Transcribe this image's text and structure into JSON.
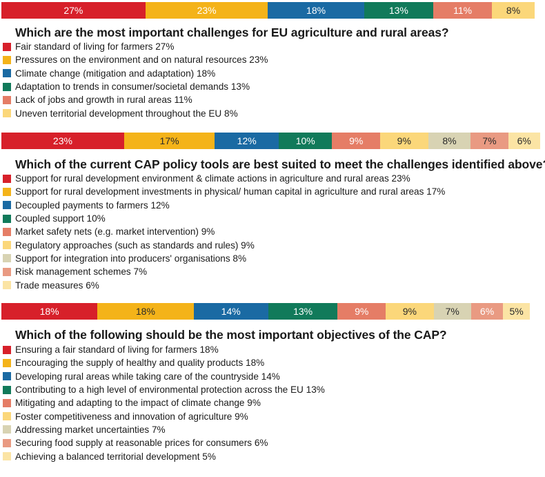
{
  "colors": {
    "red": "#d7202a",
    "orange": "#f4b319",
    "blue": "#1a6aa3",
    "green": "#117a5a",
    "salmon": "#e57d66",
    "yellow": "#fbd77a",
    "beige": "#d8d3b3",
    "pinkish": "#e99a82",
    "pale": "#fbe4a4"
  },
  "chart_data": [
    {
      "type": "bar",
      "stacked": true,
      "orientation": "horizontal",
      "title": "Which are the most important challenges for EU agriculture and rural areas?",
      "categories": [
        "Fair standard of living for farmers",
        "Pressures on the environment and on natural resources",
        "Climate change (mitigation and adaptation)",
        "Adaptation to trends in consumer/societal demands",
        "Lack of jobs and growth in rural areas",
        "Uneven territorial development throughout the EU"
      ],
      "values": [
        27,
        23,
        18,
        13,
        11,
        8
      ],
      "labels": [
        "27%",
        "23%",
        "18%",
        "13%",
        "11%",
        "8%"
      ],
      "legend": [
        "Fair standard of living for farmers 27%",
        "Pressures on the environment and on natural resources 23%",
        "Climate change (mitigation and adaptation) 18%",
        "Adaptation to trends in consumer/societal demands 13%",
        "Lack of jobs and growth in rural areas 11%",
        "Uneven territorial development throughout the EU 8%"
      ],
      "colors": [
        "#d7202a",
        "#f4b319",
        "#1a6aa3",
        "#117a5a",
        "#e57d66",
        "#fbd77a"
      ],
      "text_dark": [
        false,
        false,
        false,
        false,
        false,
        true
      ]
    },
    {
      "type": "bar",
      "stacked": true,
      "orientation": "horizontal",
      "title": "Which of the current CAP policy tools are best suited to meet the challenges identified above?",
      "categories": [
        "Support for rural development environment & climate actions in agriculture and rural areas",
        "Support for rural development investments in physical/ human capital in agriculture and rural areas",
        "Decoupled payments to farmers",
        "Coupled support",
        "Market safety nets (e.g. market intervention)",
        "Regulatory approaches (such as standards and rules)",
        "Support for integration into producers' organisations",
        "Risk management schemes",
        "Trade measures"
      ],
      "values": [
        23,
        17,
        12,
        10,
        9,
        9,
        8,
        7,
        6
      ],
      "labels": [
        "23%",
        "17%",
        "12%",
        "10%",
        "9%",
        "9%",
        "8%",
        "7%",
        "6%"
      ],
      "legend": [
        "Support for rural development environment & climate actions in agriculture and rural areas 23%",
        "Support for rural development investments in physical/ human capital in agriculture and rural areas 17%",
        "Decoupled payments to farmers 12%",
        "Coupled support 10%",
        "Market safety nets (e.g. market intervention) 9%",
        "Regulatory approaches (such as standards and rules) 9%",
        "Support for integration into producers' organisations 8%",
        "Risk management schemes 7%",
        "Trade measures 6%"
      ],
      "colors": [
        "#d7202a",
        "#f4b319",
        "#1a6aa3",
        "#117a5a",
        "#e57d66",
        "#fbd77a",
        "#d8d3b3",
        "#e99a82",
        "#fbe4a4"
      ],
      "text_dark": [
        false,
        true,
        false,
        false,
        false,
        true,
        true,
        true,
        true
      ]
    },
    {
      "type": "bar",
      "stacked": true,
      "orientation": "horizontal",
      "title": "Which of the following should be the most important objectives of the CAP?",
      "categories": [
        "Ensuring a fair standard of living for farmers",
        "Encouraging the supply of healthy and quality products",
        "Developing rural areas while taking care of the countryside",
        "Contributing to a high level of environmental protection across the EU",
        "Mitigating and adapting to the impact of climate change",
        "Foster competitiveness and innovation of agriculture",
        "Addressing market uncertainties",
        "Securing food supply at reasonable prices for consumers",
        "Achieving a balanced territorial development"
      ],
      "values": [
        18,
        18,
        14,
        13,
        9,
        9,
        7,
        6,
        5
      ],
      "labels": [
        "18%",
        "18%",
        "14%",
        "13%",
        "9%",
        "9%",
        "7%",
        "6%",
        "5%"
      ],
      "legend": [
        "Ensuring a fair standard of living for farmers 18%",
        "Encouraging the supply of healthy and quality products 18%",
        "Developing rural areas while taking care of the countryside 14%",
        "Contributing to a high level of environmental protection across the EU 13%",
        "Mitigating and adapting to the impact of climate change 9%",
        "Foster competitiveness and innovation of agriculture 9%",
        "Addressing market uncertainties 7%",
        "Securing food supply at reasonable prices for consumers 6%",
        "Achieving a balanced territorial development 5%"
      ],
      "colors": [
        "#d7202a",
        "#f4b319",
        "#1a6aa3",
        "#117a5a",
        "#e57d66",
        "#fbd77a",
        "#d8d3b3",
        "#e99a82",
        "#fbe4a4"
      ],
      "text_dark": [
        false,
        true,
        false,
        false,
        false,
        true,
        true,
        false,
        true
      ]
    }
  ]
}
